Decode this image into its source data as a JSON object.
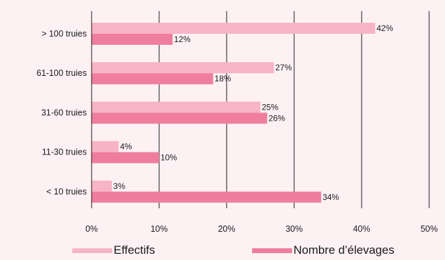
{
  "chart_data": {
    "type": "bar",
    "orientation": "horizontal",
    "categories": [
      "> 100 truies",
      "61-100 truies",
      "31-60 truies",
      "11-30 truies",
      "< 10 truies"
    ],
    "series": [
      {
        "name": "Effectifs",
        "values": [
          42,
          27,
          25,
          4,
          3
        ],
        "labels": [
          "42%",
          "27%",
          "25%",
          "4%",
          "3%"
        ]
      },
      {
        "name": "Nombre d’élevages",
        "values": [
          12,
          18,
          26,
          10,
          34
        ],
        "labels": [
          "12%",
          "18%",
          "26%",
          "10%",
          "34%"
        ]
      }
    ],
    "x_ticks": [
      "0%",
      "10%",
      "20%",
      "30%",
      "40%",
      "50%"
    ],
    "xlim": [
      0,
      50
    ],
    "unit": "%",
    "grid": "vertical",
    "legend_position": "bottom",
    "colors": {
      "Effectifs": "#f7b4c6",
      "Nombre d’élevages": "#ef7e9e",
      "background": "#fdf1f4",
      "grid": "#1a1a1a"
    }
  }
}
